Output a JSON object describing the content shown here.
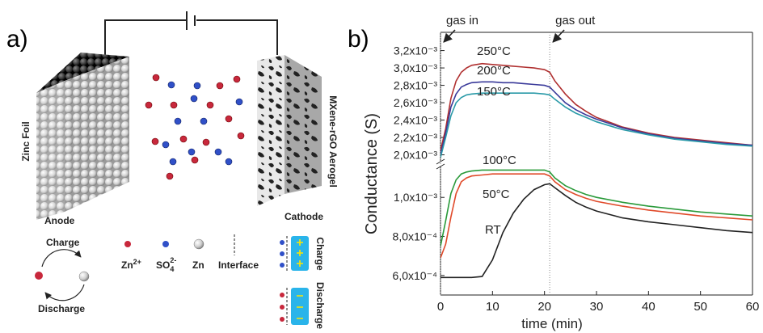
{
  "panel_a": {
    "label": "a)",
    "zinc_foil": "Zinc Foil",
    "anode": "Anode",
    "aerogel": "MXene-rGO Aerogel",
    "cathode": "Cathode",
    "cycle": {
      "charge": "Charge",
      "discharge": "Discharge"
    },
    "legend": {
      "zn_ion": {
        "base": "Zn",
        "sup": "2+"
      },
      "sulfate": {
        "base": "SO",
        "sub": "4",
        "sup": "2-"
      },
      "zn": "Zn",
      "interface": "Interface",
      "charge": "Charge",
      "discharge": "Discharge"
    }
  },
  "chart_data": {
    "type": "line",
    "panel_label": "b)",
    "xlabel": "time (min)",
    "ylabel": "Conductance (S)",
    "x": [
      0,
      1,
      2,
      3,
      4,
      5,
      6,
      8,
      10,
      12,
      14,
      16,
      18,
      20,
      21,
      22,
      24,
      26,
      28,
      30,
      35,
      40,
      45,
      50,
      55,
      60
    ],
    "xlim": [
      0,
      60
    ],
    "xticks": [
      0,
      10,
      20,
      30,
      40,
      50,
      60
    ],
    "annotations": [
      {
        "text": "gas in",
        "x": 0
      },
      {
        "text": "gas out",
        "x": 21
      }
    ],
    "segments": [
      {
        "ylim": [
          0.00194,
          0.00341
        ],
        "yticks": [
          {
            "value": 0.002,
            "label": "2,0x10⁻³"
          },
          {
            "value": 0.0022,
            "label": "2,2x10⁻³"
          },
          {
            "value": 0.0024,
            "label": "2,4x10⁻³"
          },
          {
            "value": 0.0026,
            "label": "2,6x10⁻³"
          },
          {
            "value": 0.0028,
            "label": "2,8x10⁻³"
          },
          {
            "value": 0.003,
            "label": "3,0x10⁻³"
          },
          {
            "value": 0.0032,
            "label": "3,2x10⁻³"
          }
        ],
        "series": [
          {
            "name": "250°C",
            "color": "#b03030",
            "values": [
              0.00205,
              0.0023,
              0.00265,
              0.00285,
              0.00295,
              0.003,
              0.00303,
              0.00305,
              0.00304,
              0.00303,
              0.00302,
              0.00301,
              0.003,
              0.00298,
              0.00295,
              0.00285,
              0.0027,
              0.00258,
              0.0025,
              0.00243,
              0.00232,
              0.00225,
              0.0022,
              0.00217,
              0.00214,
              0.00211
            ]
          },
          {
            "name": "200°C",
            "color": "#3a3a9a",
            "values": [
              0.002,
              0.00225,
              0.00255,
              0.0027,
              0.00278,
              0.00281,
              0.00283,
              0.00284,
              0.00284,
              0.00283,
              0.00283,
              0.00282,
              0.00281,
              0.0028,
              0.00278,
              0.00272,
              0.0026,
              0.00252,
              0.00246,
              0.00241,
              0.00231,
              0.00224,
              0.00219,
              0.00216,
              0.00213,
              0.00211
            ]
          },
          {
            "name": "150°C",
            "color": "#2a9aa8",
            "values": [
              0.00197,
              0.0022,
              0.00245,
              0.0026,
              0.00266,
              0.00269,
              0.0027,
              0.00271,
              0.00271,
              0.00271,
              0.00271,
              0.00271,
              0.00271,
              0.0027,
              0.00269,
              0.00264,
              0.00255,
              0.00248,
              0.00243,
              0.00238,
              0.00229,
              0.00223,
              0.00218,
              0.00215,
              0.00212,
              0.0021
            ]
          }
        ]
      },
      {
        "ylim": [
          0.0005,
          0.00115
        ],
        "yticks": [
          {
            "value": 0.0006,
            "label": "6,0x10⁻⁴"
          },
          {
            "value": 0.0008,
            "label": "8,0x10⁻⁴"
          },
          {
            "value": 0.001,
            "label": "1,0x10⁻³"
          }
        ],
        "series": [
          {
            "name": "100°C",
            "color": "#2a9a3a",
            "values": [
              0.00075,
              0.00088,
              0.00102,
              0.00109,
              0.00112,
              0.00113,
              0.001135,
              0.00114,
              0.00114,
              0.00114,
              0.00114,
              0.00114,
              0.00114,
              0.00114,
              0.00113,
              0.0011,
              0.00106,
              0.001035,
              0.001015,
              0.001,
              0.000975,
              0.000955,
              0.00094,
              0.000925,
              0.000915,
              0.000905
            ]
          },
          {
            "name": "50°C",
            "color": "#e04a2a",
            "values": [
              0.00069,
              0.00076,
              0.0009,
              0.00102,
              0.00108,
              0.0011,
              0.00111,
              0.001115,
              0.00112,
              0.00112,
              0.00112,
              0.00112,
              0.00112,
              0.00112,
              0.00111,
              0.00108,
              0.00104,
              0.001015,
              0.000995,
              0.00098,
              0.000955,
              0.000935,
              0.00092,
              0.000905,
              0.000895,
              0.000885
            ]
          },
          {
            "name": "RT",
            "color": "#222222",
            "values": [
              0.00059,
              0.00059,
              0.00059,
              0.00059,
              0.00059,
              0.00059,
              0.00059,
              0.000595,
              0.00068,
              0.00082,
              0.00092,
              0.00099,
              0.00104,
              0.001065,
              0.00107,
              0.00105,
              0.00101,
              0.000975,
              0.00095,
              0.00093,
              0.000895,
              0.000875,
              0.00086,
              0.000845,
              0.00083,
              0.00082
            ]
          }
        ]
      }
    ]
  }
}
